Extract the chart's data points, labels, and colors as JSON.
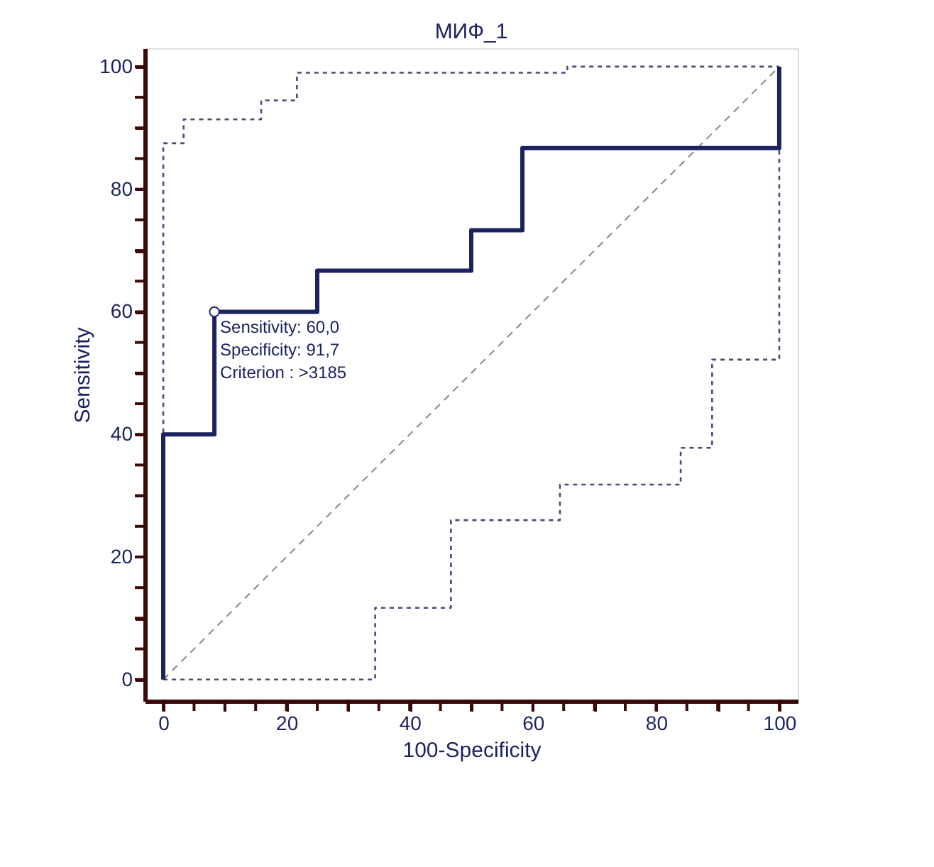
{
  "chart_data": {
    "type": "step",
    "title": "МИФ_1",
    "xlabel": "100-Specificity",
    "ylabel": "Sensitivity",
    "series": [
      {
        "type": "line",
        "color": "#888888",
        "line_style": "dashed",
        "x": [
          0,
          100
        ],
        "values": [
          0,
          100
        ]
      },
      {
        "color": "#4a4a7a",
        "line_style": "dotted",
        "x": [
          0,
          0,
          3.3,
          15.9,
          21.7,
          65.6,
          100
        ],
        "values": [
          0,
          87.5,
          91.4,
          94.5,
          99,
          100,
          100
        ]
      },
      {
        "color": "#4a4a7a",
        "line_style": "dotted",
        "x": [
          0,
          34.4,
          46.7,
          64.4,
          84.0,
          89.1,
          100
        ],
        "values": [
          0,
          11.7,
          26.0,
          31.8,
          37.8,
          52.2,
          100
        ]
      },
      {
        "color": "#1c2260",
        "line_style": "solid",
        "x": [
          0,
          0,
          8.3,
          25,
          50,
          58.3,
          100,
          100
        ],
        "values": [
          0,
          40,
          60,
          66.7,
          73.3,
          86.7,
          86.7,
          100
        ]
      },
      {
        "type": "scatter",
        "color": "#1c2260",
        "marker": "circle",
        "x": [
          8.3
        ],
        "values": [
          60
        ]
      }
    ],
    "annotations": [
      {
        "text": "Sensitivity: 60,0\nSpecificity: 91,7\nCriterion : >3185",
        "x": 8.3,
        "y": 60
      }
    ],
    "xlim": [
      -3,
      103
    ],
    "ylim": [
      -3.5,
      103
    ],
    "xticks": [
      0,
      {
        "value": 5,
        "label": null
      },
      {
        "value": 10,
        "label": null
      },
      {
        "value": 15,
        "label": null
      },
      20,
      {
        "value": 25,
        "label": null
      },
      {
        "value": 30,
        "label": null
      },
      {
        "value": 35,
        "label": null
      },
      40,
      {
        "value": 45,
        "label": null
      },
      {
        "value": 50,
        "label": null
      },
      {
        "value": 55,
        "label": null
      },
      60,
      {
        "value": 65,
        "label": null
      },
      {
        "value": 70,
        "label": null
      },
      {
        "value": 75,
        "label": null
      },
      80,
      {
        "value": 85,
        "label": null
      },
      {
        "value": 90,
        "label": null
      },
      {
        "value": 95,
        "label": null
      },
      100
    ],
    "yticks": [
      0,
      {
        "value": 5,
        "label": null
      },
      {
        "value": 10,
        "label": null
      },
      {
        "value": 15,
        "label": null
      },
      20,
      {
        "value": 25,
        "label": null
      },
      {
        "value": 30,
        "label": null
      },
      {
        "value": 35,
        "label": null
      },
      40,
      {
        "value": 45,
        "label": null
      },
      {
        "value": 50,
        "label": null
      },
      {
        "value": 55,
        "label": null
      },
      60,
      {
        "value": 65,
        "label": null
      },
      {
        "value": 70,
        "label": null
      },
      {
        "value": 75,
        "label": null
      },
      80,
      {
        "value": 85,
        "label": null
      },
      {
        "value": 90,
        "label": null
      },
      {
        "value": 95,
        "label": null
      },
      100
    ],
    "grid": false
  }
}
